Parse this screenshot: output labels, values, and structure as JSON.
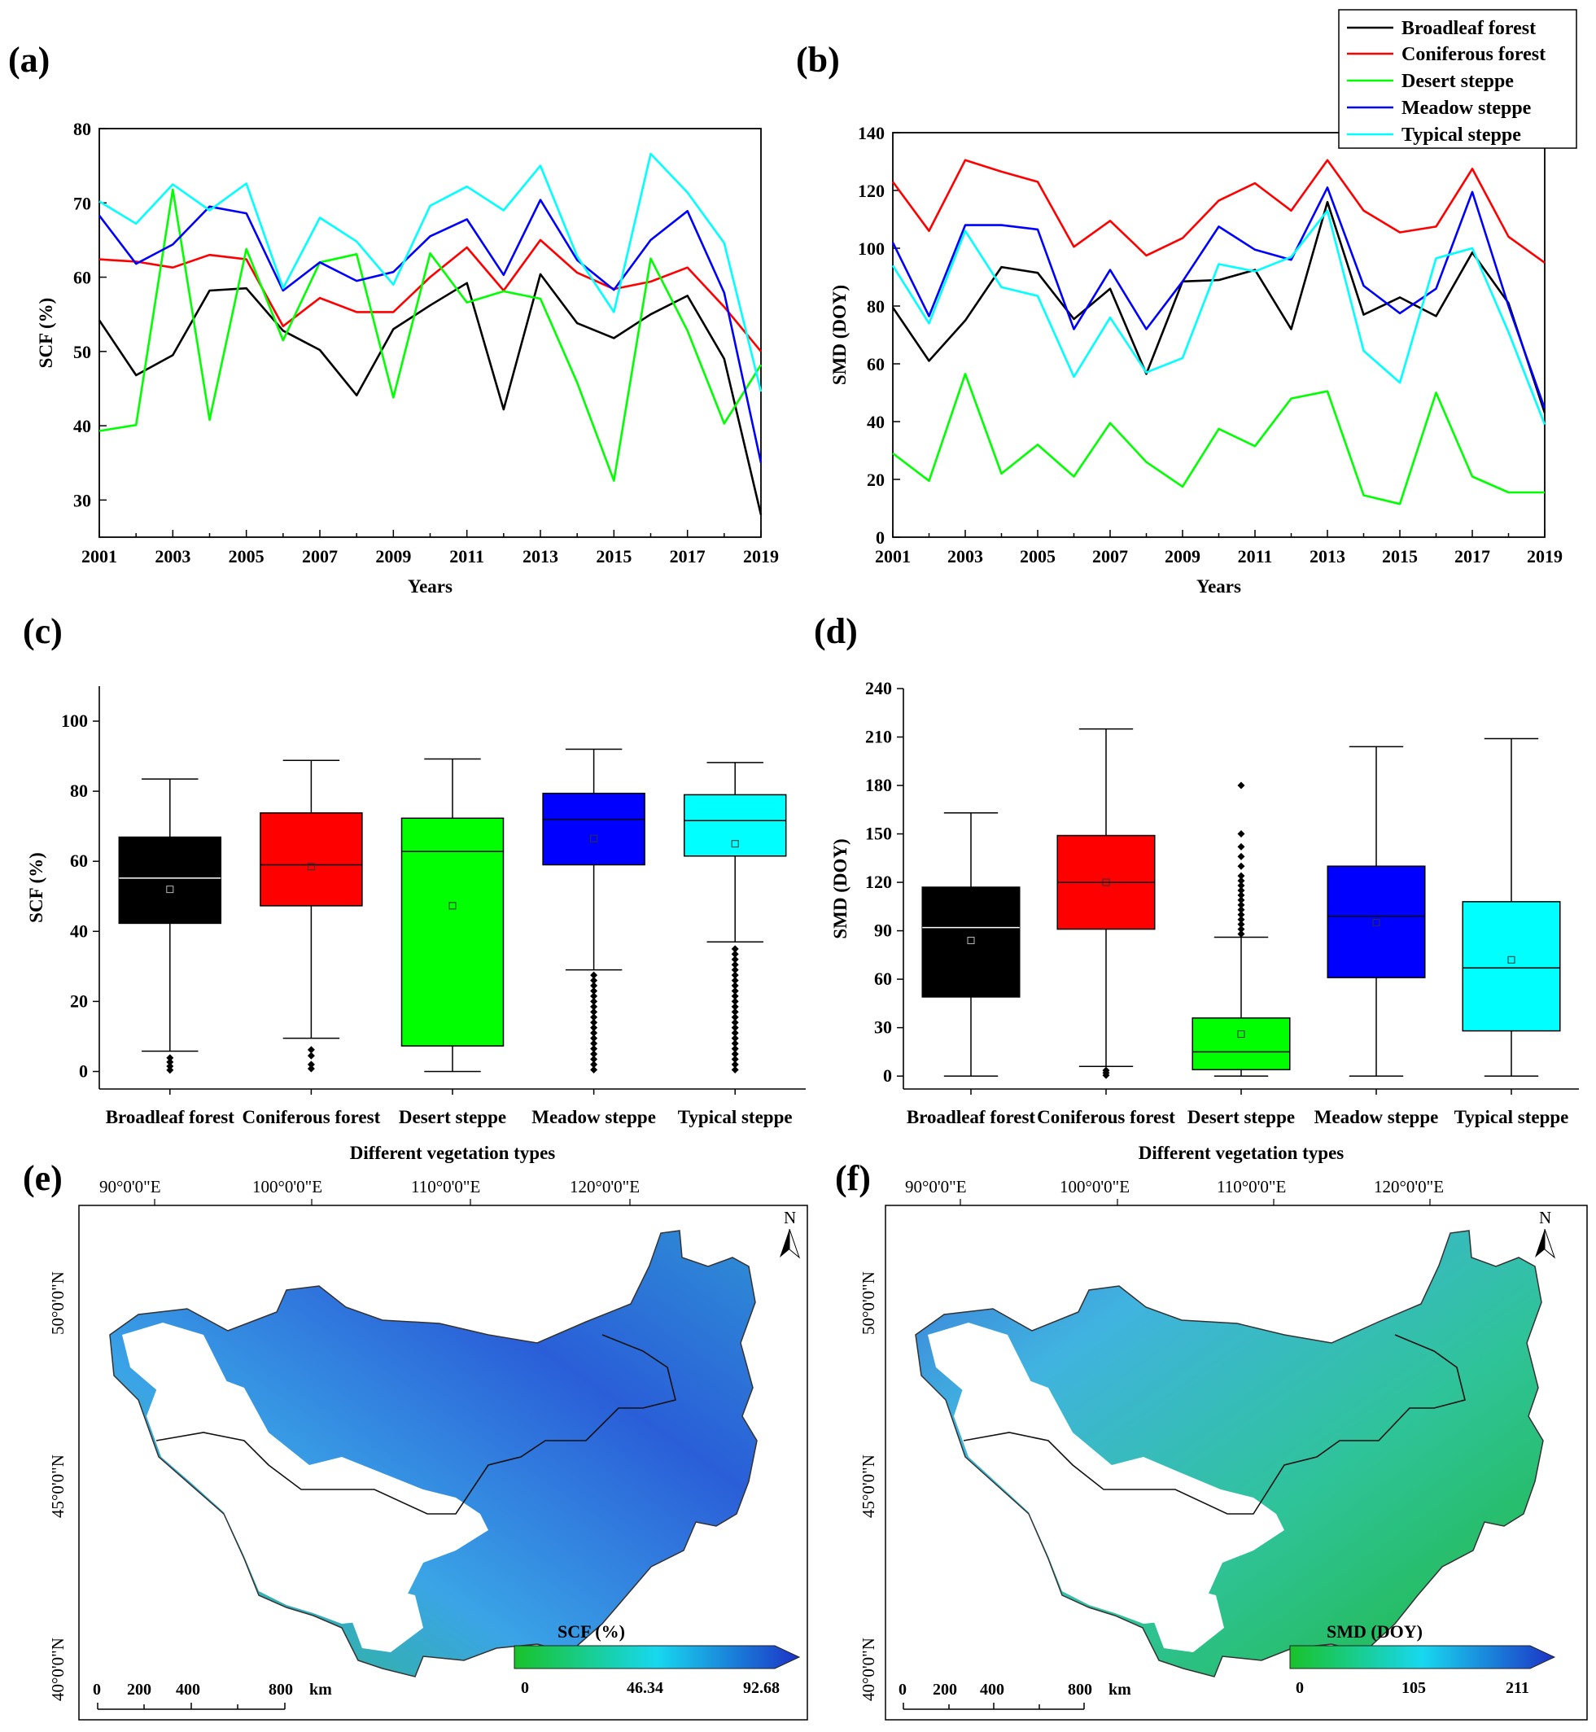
{
  "panels": {
    "a": "(a)",
    "b": "(b)",
    "c": "(c)",
    "d": "(d)",
    "e": "(e)",
    "f": "(f)"
  },
  "colors": {
    "broadleaf": "#000000",
    "coniferous": "#ff0000",
    "desert": "#00ff00",
    "meadow": "#0000ff",
    "typical": "#00ffff",
    "map_low": "#1fc021",
    "map_mid": "#19d6f0",
    "map_high": "#1a34c4"
  },
  "chart_data": [
    {
      "id": "a",
      "type": "line",
      "xlabel": "Years",
      "ylabel": "SCF (%)",
      "ylim": [
        25,
        80
      ],
      "yticks": [
        30,
        40,
        50,
        60,
        70,
        80
      ],
      "xticks": [
        2001,
        2003,
        2005,
        2007,
        2009,
        2011,
        2013,
        2015,
        2017,
        2019
      ],
      "x": [
        2001,
        2002,
        2003,
        2004,
        2005,
        2006,
        2007,
        2008,
        2009,
        2010,
        2011,
        2012,
        2013,
        2014,
        2015,
        2016,
        2017,
        2018,
        2019
      ],
      "series": [
        {
          "name": "Broadleaf forest",
          "values": [
            54.2,
            46.8,
            49.5,
            58.2,
            58.5,
            52.8,
            50.2,
            44.1,
            53.0,
            56.2,
            59.2,
            42.2,
            60.4,
            53.8,
            51.8,
            55.0,
            57.5,
            49.0,
            28.0
          ]
        },
        {
          "name": "Coniferous forest",
          "values": [
            62.4,
            62.1,
            61.3,
            63.0,
            62.4,
            53.4,
            57.2,
            55.3,
            55.3,
            60.0,
            64.0,
            58.2,
            65.0,
            60.6,
            58.4,
            59.4,
            61.3,
            56.0,
            50.0
          ]
        },
        {
          "name": "Desert steppe",
          "values": [
            39.3,
            40.1,
            71.8,
            40.8,
            63.8,
            51.5,
            62.0,
            63.1,
            43.8,
            63.2,
            56.6,
            58.1,
            57.1,
            45.8,
            32.6,
            62.5,
            52.8,
            40.3,
            48.2
          ]
        },
        {
          "name": "Meadow steppe",
          "values": [
            68.3,
            61.8,
            64.4,
            69.5,
            68.6,
            58.2,
            62.0,
            59.5,
            60.7,
            65.5,
            67.8,
            60.3,
            70.4,
            62.3,
            58.3,
            65.0,
            68.9,
            57.9,
            35.0
          ]
        },
        {
          "name": "Typical steppe",
          "values": [
            70.2,
            67.2,
            72.5,
            69.0,
            72.6,
            58.5,
            68.0,
            64.8,
            59.0,
            69.6,
            72.2,
            69.0,
            75.0,
            62.8,
            55.3,
            76.6,
            71.4,
            64.6,
            44.6
          ]
        }
      ]
    },
    {
      "id": "b",
      "type": "line",
      "xlabel": "Years",
      "ylabel": "SMD (DOY)",
      "ylim": [
        0,
        140
      ],
      "yticks": [
        0,
        20,
        40,
        60,
        80,
        100,
        120,
        140
      ],
      "xticks": [
        2001,
        2003,
        2005,
        2007,
        2009,
        2011,
        2013,
        2015,
        2017,
        2019
      ],
      "x": [
        2001,
        2002,
        2003,
        2004,
        2005,
        2006,
        2007,
        2008,
        2009,
        2010,
        2011,
        2012,
        2013,
        2014,
        2015,
        2016,
        2017,
        2018,
        2019
      ],
      "legend_position": "top-right",
      "series": [
        {
          "name": "Broadleaf forest",
          "values": [
            79.5,
            61.0,
            75.0,
            93.5,
            91.5,
            75.5,
            86.0,
            56.5,
            88.5,
            89.0,
            92.5,
            72.0,
            116.0,
            77.0,
            83.0,
            76.5,
            98.5,
            81.0,
            43.0
          ]
        },
        {
          "name": "Coniferous forest",
          "values": [
            123.0,
            106.0,
            130.5,
            126.5,
            123.0,
            100.5,
            109.5,
            97.5,
            103.5,
            116.5,
            122.5,
            113.0,
            130.5,
            113.0,
            105.5,
            107.5,
            127.5,
            104.0,
            95.0
          ]
        },
        {
          "name": "Desert steppe",
          "values": [
            29.0,
            19.5,
            56.5,
            22.0,
            32.0,
            21.0,
            39.5,
            26.0,
            17.5,
            37.5,
            31.5,
            48.0,
            50.5,
            14.5,
            11.5,
            50.0,
            21.0,
            15.5,
            15.5
          ]
        },
        {
          "name": "Meadow steppe",
          "values": [
            102.0,
            76.5,
            108.0,
            108.0,
            106.5,
            72.0,
            92.5,
            72.0,
            88.5,
            107.5,
            99.5,
            96.0,
            121.0,
            87.0,
            77.5,
            86.0,
            119.5,
            80.0,
            44.5
          ]
        },
        {
          "name": "Typical steppe",
          "values": [
            94.0,
            74.0,
            106.0,
            86.5,
            83.5,
            55.5,
            76.0,
            57.0,
            62.0,
            94.5,
            92.0,
            97.0,
            113.0,
            64.5,
            53.5,
            96.5,
            100.0,
            71.0,
            39.0
          ]
        }
      ]
    },
    {
      "id": "c",
      "type": "box",
      "xlabel": "Different vegetation types",
      "ylabel": "SCF (%)",
      "ylim": [
        -5,
        110
      ],
      "yticks": [
        0,
        20,
        40,
        60,
        80,
        100
      ],
      "categories": [
        "Broadleaf forest",
        "Coniferous forest",
        "Desert steppe",
        "Meadow steppe",
        "Typical steppe"
      ],
      "boxes": [
        {
          "whisker_low": 5.8,
          "q1": 42.3,
          "median": 55.2,
          "q3": 66.9,
          "whisker_high": 83.5,
          "mean": 52.0,
          "outliers": [
            0.4,
            1.5,
            2.7,
            3.9
          ]
        },
        {
          "whisker_low": 9.5,
          "q1": 47.3,
          "median": 59.0,
          "q3": 73.8,
          "whisker_high": 88.8,
          "mean": 58.5,
          "outliers": [
            0.8,
            2.0,
            4.5,
            6.2
          ]
        },
        {
          "whisker_low": 0.0,
          "q1": 7.3,
          "median": 62.8,
          "q3": 72.3,
          "whisker_high": 89.2,
          "mean": 47.3,
          "outliers": []
        },
        {
          "whisker_low": 29.0,
          "q1": 59.0,
          "median": 72.0,
          "q3": 79.4,
          "whisker_high": 92.0,
          "mean": 66.5,
          "outliers": [
            0.5,
            2.0,
            3.5,
            5.0,
            6.5,
            8.0,
            9.5,
            11.0,
            12.5,
            14.0,
            15.5,
            17.0,
            18.5,
            20.0,
            21.5,
            23.0,
            24.5,
            26.0,
            27.5
          ]
        },
        {
          "whisker_low": 37.0,
          "q1": 61.5,
          "median": 71.6,
          "q3": 79.0,
          "whisker_high": 88.2,
          "mean": 65.0,
          "outliers": [
            0.5,
            2.0,
            3.5,
            5.0,
            6.5,
            8.0,
            9.5,
            11.0,
            12.5,
            14.0,
            15.5,
            17.0,
            18.5,
            20.0,
            21.5,
            23.0,
            24.5,
            26.0,
            27.5,
            29.0,
            30.5,
            32.0,
            33.5,
            35.0
          ]
        }
      ]
    },
    {
      "id": "d",
      "type": "box",
      "xlabel": "Different vegetation types",
      "ylabel": "SMD  (DOY)",
      "ylim": [
        -8,
        240
      ],
      "yticks": [
        0,
        30,
        60,
        90,
        120,
        150,
        180,
        210,
        240
      ],
      "categories": [
        "Broadleaf forest",
        "Coniferous forest",
        "Desert steppe",
        "Meadow steppe",
        "Typical steppe"
      ],
      "boxes": [
        {
          "whisker_low": 0,
          "q1": 49,
          "median": 92,
          "q3": 117,
          "whisker_high": 163,
          "mean": 84,
          "outliers": []
        },
        {
          "whisker_low": 6,
          "q1": 91,
          "median": 120,
          "q3": 149,
          "whisker_high": 215,
          "mean": 120,
          "outliers": [
            0.5,
            2,
            3.5
          ]
        },
        {
          "whisker_low": 0,
          "q1": 4,
          "median": 15,
          "q3": 36,
          "whisker_high": 86,
          "mean": 26,
          "outliers": [
            88,
            91,
            94,
            97,
            100,
            103,
            106,
            109,
            112,
            115,
            118,
            121,
            124,
            130,
            136,
            142,
            150,
            180
          ]
        },
        {
          "whisker_low": 0,
          "q1": 61,
          "median": 99,
          "q3": 130,
          "whisker_high": 204,
          "mean": 95,
          "outliers": []
        },
        {
          "whisker_low": 0,
          "q1": 28,
          "median": 67,
          "q3": 108,
          "whisker_high": 209,
          "mean": 72,
          "outliers": []
        }
      ]
    }
  ],
  "maps": {
    "e": {
      "lon_labels": [
        "90°0'0\"E",
        "100°0'0\"E",
        "110°0'0\"E",
        "120°0'0\"E"
      ],
      "lat_labels": [
        "50°0'0\"N",
        "45°0'0\"N",
        "40°0'0\"N"
      ],
      "north": "N",
      "scale_labels": [
        "0",
        "200",
        "400",
        "800"
      ],
      "scale_unit": "km",
      "colorbar_title": "SCF (%)",
      "colorbar_ticks": [
        "0",
        "46.34",
        "92.68"
      ]
    },
    "f": {
      "lon_labels": [
        "90°0'0\"E",
        "100°0'0\"E",
        "110°0'0\"E",
        "120°0'0\"E"
      ],
      "lat_labels": [
        "50°0'0\"N",
        "45°0'0\"N",
        "40°0'0\"N"
      ],
      "north": "N",
      "scale_labels": [
        "0",
        "200",
        "400",
        "800"
      ],
      "scale_unit": "km",
      "colorbar_title": "SMD (DOY)",
      "colorbar_ticks": [
        "0",
        "105",
        "211"
      ]
    }
  }
}
